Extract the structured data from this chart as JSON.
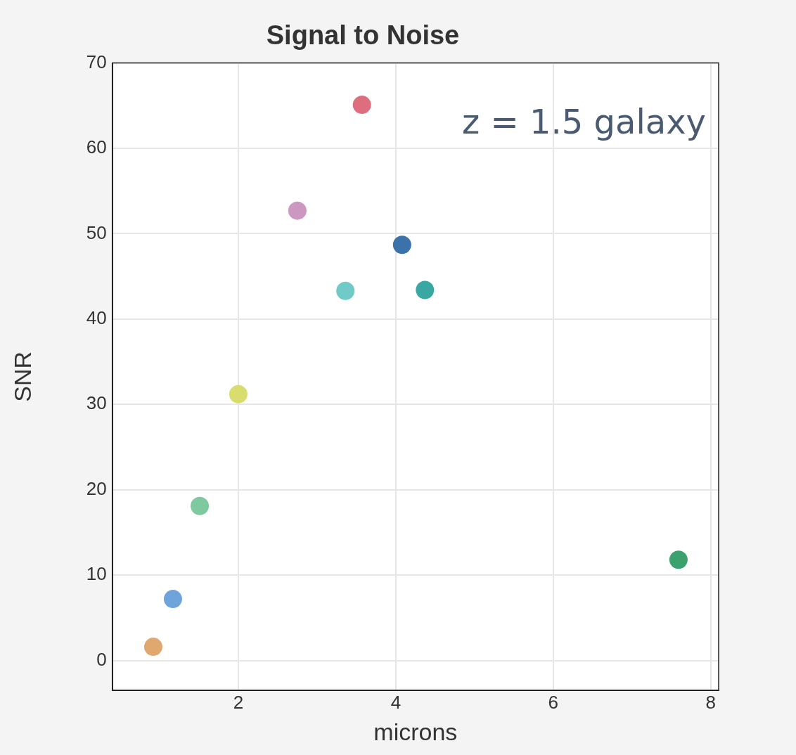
{
  "chart_data": {
    "type": "scatter",
    "title": "Signal to Noise",
    "xlabel": "microns",
    "ylabel": "SNR",
    "annotations": [
      "z = 1.5 galaxy"
    ],
    "x": [
      0.92,
      1.17,
      1.51,
      2.0,
      2.75,
      3.36,
      3.57,
      4.08,
      4.37,
      7.59
    ],
    "values": [
      1.6,
      7.2,
      18.1,
      31.2,
      52.7,
      43.3,
      65.1,
      48.7,
      43.4,
      11.8
    ],
    "colors": [
      "#e0a86e",
      "#6fa3dc",
      "#7fc9a0",
      "#d9dd6d",
      "#cc97c0",
      "#6fcac8",
      "#dc6e7e",
      "#3b72aa",
      "#3aa8a2",
      "#3ba26f"
    ],
    "xlim": [
      0.4,
      8.1
    ],
    "ylim": [
      -3.5,
      70
    ],
    "xticks": [
      2,
      4,
      6,
      8
    ],
    "yticks": [
      0,
      10,
      20,
      30,
      40,
      50,
      60,
      70
    ],
    "grid": true,
    "marker": "circle",
    "legend": false
  }
}
